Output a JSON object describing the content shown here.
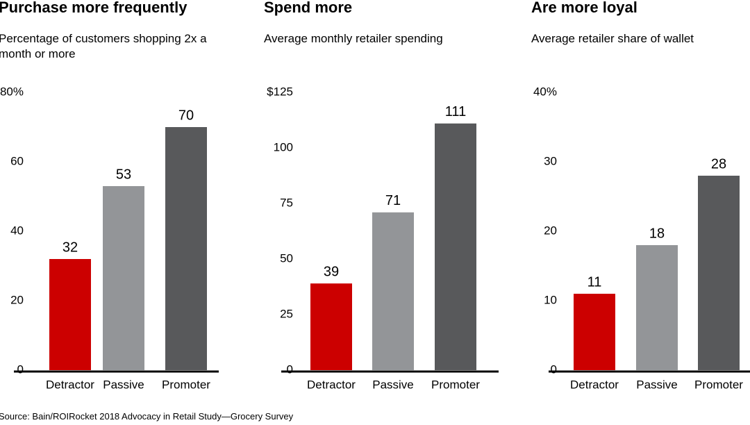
{
  "chart_data": [
    {
      "type": "bar",
      "title": "Purchase more frequently",
      "subtitle": "Percentage of customers shopping 2x a month or more",
      "categories": [
        "Detractor",
        "Passive",
        "Promoter"
      ],
      "values": [
        32,
        53,
        70
      ],
      "colors": [
        "#cc0000",
        "#939598",
        "#58595b"
      ],
      "ylim": [
        0,
        80
      ],
      "yticks": [
        0,
        20,
        40,
        60,
        {
          "value": 80,
          "label": "80%"
        }
      ]
    },
    {
      "type": "bar",
      "title": "Spend more",
      "subtitle": "Average monthly retailer spending",
      "categories": [
        "Detractor",
        "Passive",
        "Promoter"
      ],
      "values": [
        39,
        71,
        111
      ],
      "colors": [
        "#cc0000",
        "#939598",
        "#58595b"
      ],
      "ylim": [
        0,
        125
      ],
      "yticks": [
        0,
        25,
        50,
        75,
        100,
        {
          "value": 125,
          "label": "$125"
        }
      ]
    },
    {
      "type": "bar",
      "title": "Are more loyal",
      "subtitle": "Average retailer share of wallet",
      "categories": [
        "Detractor",
        "Passive",
        "Promoter"
      ],
      "values": [
        11,
        18,
        28
      ],
      "colors": [
        "#cc0000",
        "#939598",
        "#58595b"
      ],
      "ylim": [
        0,
        40
      ],
      "yticks": [
        0,
        10,
        20,
        30,
        {
          "value": 40,
          "label": "40%"
        }
      ]
    }
  ],
  "source": "Source: Bain/ROIRocket 2018 Advocacy in Retail Study—Grocery Survey"
}
